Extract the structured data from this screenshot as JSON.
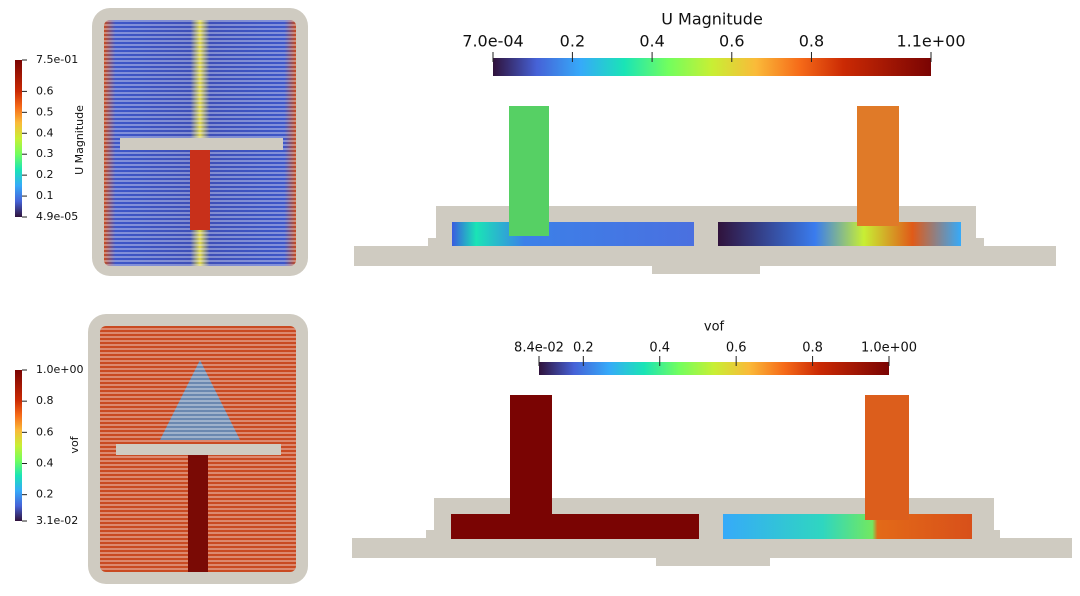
{
  "colorbars": [
    {
      "title": "U Magnitude",
      "orientation": "vertical",
      "ticks": [
        {
          "value": 4.9e-05,
          "label": "4.9e-05"
        },
        0.1,
        0.2,
        0.3,
        0.4,
        0.5,
        0.6,
        {
          "value": 0.75,
          "label": "7.5e-01"
        }
      ]
    },
    {
      "title": "U Magnitude",
      "orientation": "horizontal",
      "ticks": [
        {
          "value": 0.0007,
          "label": "7.0e-04"
        },
        0.2,
        0.4,
        0.6,
        0.8,
        {
          "value": 1.1,
          "label": "1.1e+00"
        }
      ]
    },
    {
      "title": "vof",
      "orientation": "vertical",
      "ticks": [
        {
          "value": 0.031,
          "label": "3.1e-02"
        },
        0.2,
        0.4,
        0.6,
        0.8,
        {
          "value": 1.0,
          "label": "1.0e+00"
        }
      ]
    },
    {
      "title": "vof",
      "orientation": "horizontal",
      "ticks": [
        {
          "value": 0.084,
          "label": "8.4e-02"
        },
        0.2,
        0.4,
        0.6,
        0.8,
        {
          "value": 1.0,
          "label": "1.0e+00"
        }
      ]
    }
  ]
}
